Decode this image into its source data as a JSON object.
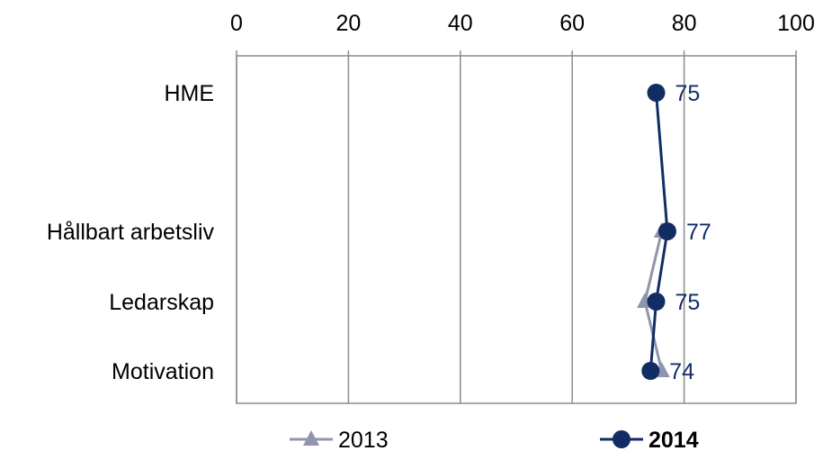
{
  "chart_data": {
    "type": "line",
    "orientation": "horizontal",
    "xlim": [
      0,
      100
    ],
    "x_ticks": [
      "0",
      "20",
      "40",
      "60",
      "80",
      "100"
    ],
    "x_tick_values": [
      0,
      20,
      40,
      60,
      80,
      100
    ],
    "categories": [
      "HME",
      "Hållbart arbetsliv",
      "Ledarskap",
      "Motivation"
    ],
    "grid": true,
    "legend_placement": "bottom",
    "series": [
      {
        "name": "2013",
        "marker": "triangle",
        "color": "#8f95ad",
        "values": [
          null,
          76,
          73,
          76
        ],
        "labels": [
          null,
          null,
          null,
          null
        ]
      },
      {
        "name": "2014",
        "marker": "circle",
        "color": "#112d64",
        "values": [
          75,
          77,
          75,
          74
        ],
        "labels": [
          "75",
          "77",
          "75",
          "74"
        ]
      }
    ]
  }
}
